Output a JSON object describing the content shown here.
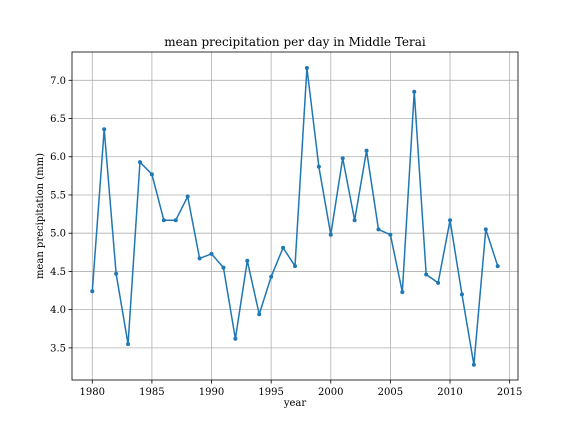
{
  "chart_data": {
    "type": "line",
    "title": "mean precipitation per day in Middle Terai",
    "xlabel": "year",
    "ylabel": "mean precipitation (mm)",
    "xlim": [
      1978.3,
      2015.7
    ],
    "ylim": [
      3.08,
      7.37
    ],
    "xticks": [
      1980,
      1985,
      1990,
      1995,
      2000,
      2005,
      2010,
      2015
    ],
    "yticks": [
      3.5,
      4.0,
      4.5,
      5.0,
      5.5,
      6.0,
      6.5,
      7.0
    ],
    "ytick_labels": [
      "3.5",
      "4.0",
      "4.5",
      "5.0",
      "5.5",
      "6.0",
      "6.5",
      "7.0"
    ],
    "grid": true,
    "color": "#1f77b4",
    "x": [
      1980,
      1981,
      1982,
      1983,
      1984,
      1985,
      1986,
      1987,
      1988,
      1989,
      1990,
      1991,
      1992,
      1993,
      1994,
      1995,
      1996,
      1997,
      1998,
      1999,
      2000,
      2001,
      2002,
      2003,
      2004,
      2005,
      2006,
      2007,
      2008,
      2009,
      2010,
      2011,
      2012,
      2013,
      2014
    ],
    "values": [
      4.24,
      6.36,
      4.47,
      3.55,
      5.93,
      5.77,
      5.17,
      5.17,
      5.48,
      4.67,
      4.73,
      4.55,
      3.62,
      4.64,
      3.94,
      4.43,
      4.81,
      4.57,
      7.16,
      5.87,
      4.98,
      5.98,
      5.17,
      6.08,
      5.05,
      4.98,
      4.23,
      6.85,
      4.46,
      4.35,
      5.17,
      4.2,
      3.28,
      5.05,
      4.57
    ]
  }
}
